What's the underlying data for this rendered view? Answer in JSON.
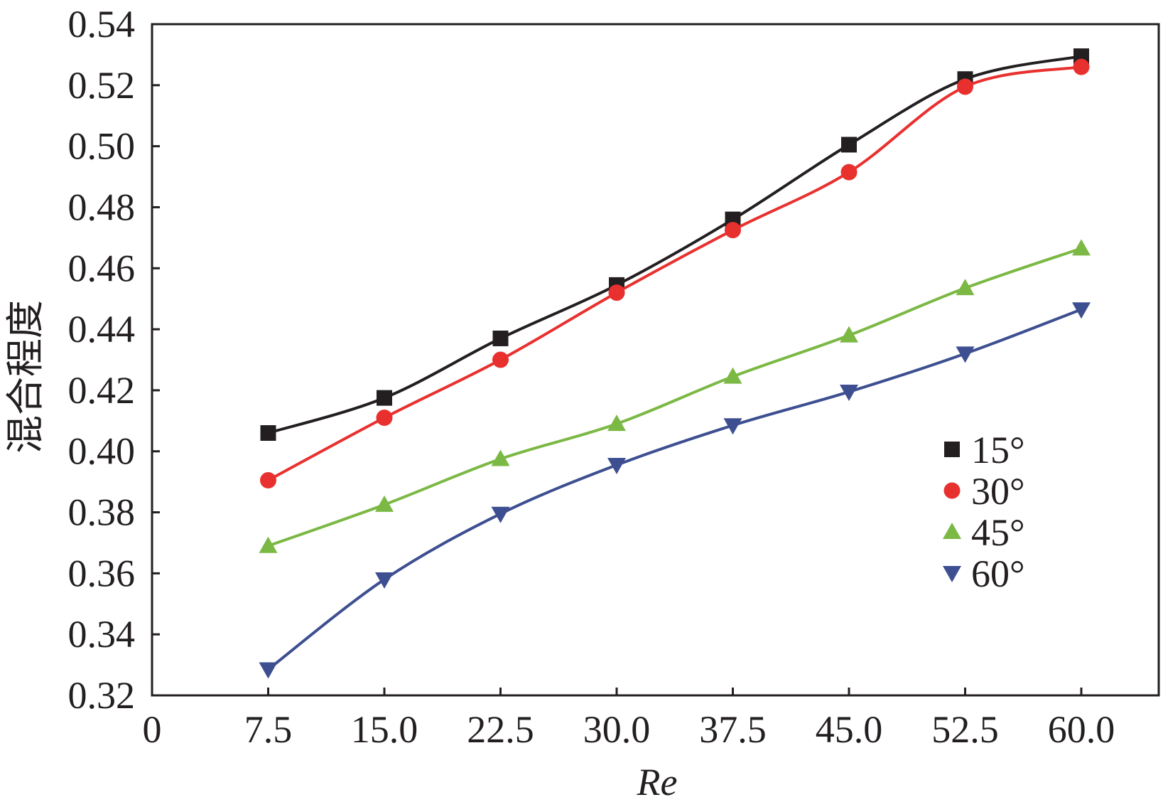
{
  "chart_data": {
    "type": "line",
    "xlabel": "Re",
    "ylabel": "混合程度",
    "xlim": [
      0,
      65
    ],
    "ylim": [
      0.32,
      0.54
    ],
    "x_ticks": [
      0,
      7.5,
      15.0,
      22.5,
      30.0,
      37.5,
      45.0,
      52.5,
      60.0
    ],
    "x_tick_labels": [
      "0",
      "7.5",
      "15.0",
      "22.5",
      "30.0",
      "37.5",
      "45.0",
      "52.5",
      "60.0"
    ],
    "y_ticks": [
      0.32,
      0.34,
      0.36,
      0.38,
      0.4,
      0.42,
      0.44,
      0.46,
      0.48,
      0.5,
      0.52,
      0.54
    ],
    "y_tick_labels": [
      "0.32",
      "0.34",
      "0.36",
      "0.38",
      "0.40",
      "0.42",
      "0.44",
      "0.46",
      "0.48",
      "0.50",
      "0.52",
      "0.54"
    ],
    "x": [
      7.5,
      15.0,
      22.5,
      30.0,
      37.5,
      45.0,
      52.5,
      60.0
    ],
    "grid": false,
    "legend_position": "right",
    "series": [
      {
        "name": "15°",
        "marker": "square",
        "color": "#231f20",
        "values": [
          0.406,
          0.4175,
          0.437,
          0.4545,
          0.476,
          0.5005,
          0.522,
          0.5295
        ]
      },
      {
        "name": "30°",
        "marker": "circle",
        "color": "#e8312f",
        "values": [
          0.3905,
          0.411,
          0.43,
          0.452,
          0.4725,
          0.4915,
          0.5195,
          0.526
        ]
      },
      {
        "name": "45°",
        "marker": "triangle-up",
        "color": "#7bb844",
        "values": [
          0.369,
          0.3825,
          0.3975,
          0.409,
          0.4245,
          0.438,
          0.4535,
          0.4665
        ]
      },
      {
        "name": "60°",
        "marker": "triangle-down",
        "color": "#3d4f91",
        "values": [
          0.3285,
          0.358,
          0.3795,
          0.3955,
          0.4085,
          0.4195,
          0.432,
          0.4465
        ]
      }
    ]
  }
}
